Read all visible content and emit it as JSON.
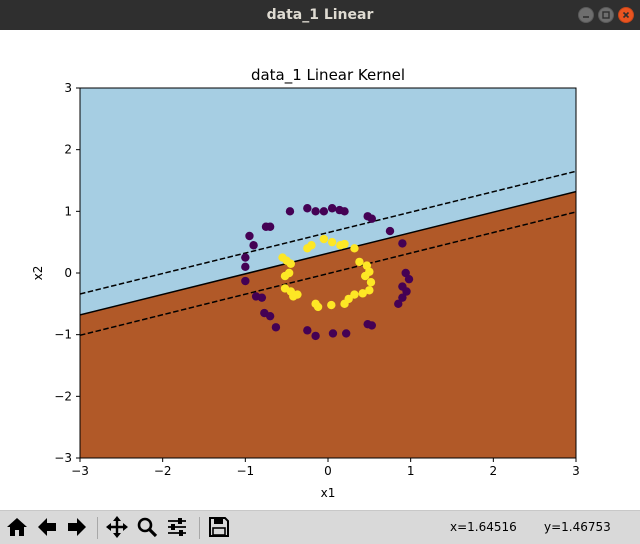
{
  "window": {
    "title": "data_1 Linear"
  },
  "chart_data": {
    "type": "scatter",
    "title": "data_1 Linear Kernel",
    "xlabel": "x1",
    "ylabel": "x2",
    "xlim": [
      -3,
      3
    ],
    "ylim": [
      -3,
      3
    ],
    "xticks": [
      -3,
      -2,
      -1,
      0,
      1,
      2,
      3
    ],
    "yticks": [
      -3,
      -2,
      -1,
      0,
      1,
      2,
      3
    ],
    "grid": false,
    "legend": "none",
    "colors": {
      "region_upper": "#a6cee3",
      "region_lower": "#b15928",
      "class_outer": "#440154",
      "class_inner": "#fde725",
      "boundary": "#000000"
    },
    "decision_boundary": {
      "x": [
        -3,
        3
      ],
      "y": [
        -0.68,
        1.32
      ]
    },
    "margin_upper": {
      "x": [
        -3,
        3
      ],
      "y": [
        -0.34,
        1.65
      ]
    },
    "margin_lower": {
      "x": [
        -3,
        3
      ],
      "y": [
        -1.01,
        0.99
      ]
    },
    "series": [
      {
        "class": "outer",
        "color": "#440154",
        "points": [
          [
            -0.46,
            1.0
          ],
          [
            -0.25,
            1.05
          ],
          [
            -0.15,
            1.0
          ],
          [
            -0.05,
            1.0
          ],
          [
            0.05,
            1.05
          ],
          [
            0.14,
            1.02
          ],
          [
            0.2,
            1.0
          ],
          [
            0.48,
            0.92
          ],
          [
            0.53,
            0.88
          ],
          [
            0.75,
            0.68
          ],
          [
            0.9,
            0.48
          ],
          [
            -0.75,
            0.75
          ],
          [
            -0.7,
            0.75
          ],
          [
            -0.95,
            0.6
          ],
          [
            -0.9,
            0.45
          ],
          [
            -1.0,
            0.25
          ],
          [
            -1.0,
            0.1
          ],
          [
            0.94,
            0.0
          ],
          [
            0.98,
            -0.1
          ],
          [
            0.9,
            -0.22
          ],
          [
            0.95,
            -0.3
          ],
          [
            0.9,
            -0.4
          ],
          [
            0.85,
            -0.5
          ],
          [
            -1.0,
            -0.13
          ],
          [
            -0.87,
            -0.38
          ],
          [
            -0.8,
            -0.4
          ],
          [
            -0.77,
            -0.65
          ],
          [
            -0.7,
            -0.7
          ],
          [
            -0.63,
            -0.88
          ],
          [
            -0.25,
            -0.93
          ],
          [
            -0.15,
            -1.02
          ],
          [
            0.06,
            -0.98
          ],
          [
            0.22,
            -0.98
          ],
          [
            0.48,
            -0.83
          ],
          [
            0.53,
            -0.85
          ]
        ]
      },
      {
        "class": "inner",
        "color": "#fde725",
        "points": [
          [
            -0.05,
            0.55
          ],
          [
            0.05,
            0.5
          ],
          [
            -0.2,
            0.45
          ],
          [
            -0.25,
            0.4
          ],
          [
            0.15,
            0.45
          ],
          [
            0.2,
            0.47
          ],
          [
            0.32,
            0.4
          ],
          [
            -0.55,
            0.25
          ],
          [
            -0.5,
            0.2
          ],
          [
            -0.45,
            0.15
          ],
          [
            -0.47,
            0.0
          ],
          [
            -0.52,
            -0.05
          ],
          [
            0.38,
            0.18
          ],
          [
            0.47,
            0.12
          ],
          [
            0.5,
            0.02
          ],
          [
            0.45,
            -0.05
          ],
          [
            0.52,
            -0.15
          ],
          [
            0.5,
            -0.28
          ],
          [
            0.42,
            -0.33
          ],
          [
            -0.52,
            -0.25
          ],
          [
            -0.45,
            -0.3
          ],
          [
            -0.37,
            -0.35
          ],
          [
            -0.42,
            -0.38
          ],
          [
            0.32,
            -0.35
          ],
          [
            0.25,
            -0.42
          ],
          [
            0.2,
            -0.5
          ],
          [
            0.04,
            -0.52
          ],
          [
            -0.15,
            -0.5
          ],
          [
            -0.12,
            -0.55
          ]
        ]
      }
    ]
  },
  "toolbar": {
    "buttons": [
      {
        "name": "home-icon",
        "tooltip": "Home"
      },
      {
        "name": "back-arrow-icon",
        "tooltip": "Back"
      },
      {
        "name": "forward-arrow-icon",
        "tooltip": "Forward"
      },
      {
        "name": "pan-move-icon",
        "tooltip": "Pan"
      },
      {
        "name": "zoom-magnifier-icon",
        "tooltip": "Zoom"
      },
      {
        "name": "configure-subplots-icon",
        "tooltip": "Subplots"
      },
      {
        "name": "save-floppy-icon",
        "tooltip": "Save"
      }
    ],
    "coord_x": "x=1.64516",
    "coord_y": "y=1.46753"
  }
}
